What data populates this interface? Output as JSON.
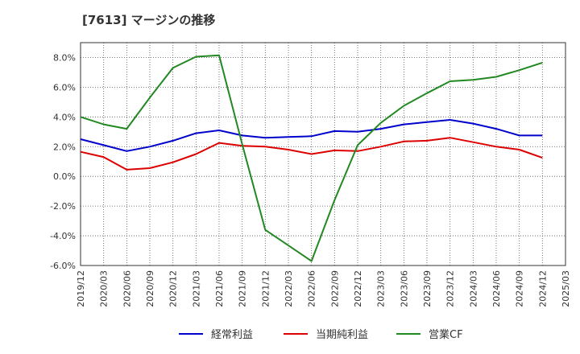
{
  "chart_data": {
    "type": "line",
    "title": "[7613]  マージンの推移",
    "x": [
      "2019/12",
      "2020/03",
      "2020/06",
      "2020/09",
      "2020/12",
      "2021/03",
      "2021/06",
      "2021/09",
      "2021/12",
      "2022/03",
      "2022/06",
      "2022/09",
      "2022/12",
      "2023/03",
      "2023/06",
      "2023/09",
      "2023/12",
      "2024/03",
      "2024/06",
      "2024/09",
      "2024/12",
      "2025/03"
    ],
    "ylim": [
      -6.0,
      9.0
    ],
    "yticks": [
      -6.0,
      -4.0,
      -2.0,
      0.0,
      2.0,
      4.0,
      6.0,
      8.0
    ],
    "ytick_labels": [
      "-6.0%",
      "-4.0%",
      "-2.0%",
      "0.0%",
      "2.0%",
      "4.0%",
      "6.0%",
      "8.0%"
    ],
    "grid": true,
    "legend_position": "bottom",
    "series": [
      {
        "name": "経常利益",
        "color": "#0000cc",
        "values": [
          2.5,
          2.1,
          1.7,
          2.0,
          2.4,
          2.9,
          3.1,
          2.75,
          2.6,
          2.65,
          2.7,
          3.05,
          3.0,
          3.2,
          3.5,
          3.65,
          3.8,
          3.55,
          3.2,
          2.75,
          2.75,
          null
        ]
      },
      {
        "name": "当期純利益",
        "color": "#dd0000",
        "values": [
          1.65,
          1.3,
          0.45,
          0.55,
          0.95,
          1.5,
          2.25,
          2.05,
          2.0,
          1.8,
          1.5,
          1.75,
          1.7,
          2.0,
          2.35,
          2.4,
          2.6,
          2.3,
          2.0,
          1.8,
          1.25,
          null
        ]
      },
      {
        "name": "営業CF",
        "color": "#228822",
        "values": [
          4.0,
          3.5,
          3.2,
          5.3,
          7.3,
          8.05,
          8.15,
          2.15,
          -3.6,
          -4.65,
          -5.7,
          -1.6,
          2.1,
          3.6,
          4.75,
          5.6,
          6.4,
          6.5,
          6.7,
          7.15,
          7.65,
          null
        ]
      }
    ]
  }
}
